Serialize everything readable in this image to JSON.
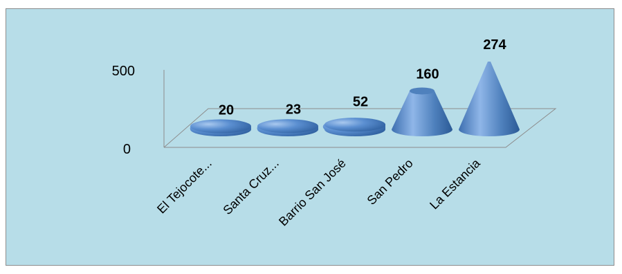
{
  "chart_data": {
    "type": "bar",
    "categories": [
      "El Tejocote...",
      "Santa Cruz...",
      "Barrio San José",
      "San Pedro",
      "La Estancia"
    ],
    "values": [
      20,
      23,
      52,
      160,
      274
    ],
    "data_labels": [
      "20",
      "23",
      "52",
      "160",
      "274"
    ],
    "y_ticks": [
      "0",
      "500"
    ],
    "ylim": [
      0,
      500
    ],
    "grid": false,
    "legend": "none",
    "style": "3d-cone",
    "colors": {
      "background": "#b7dde8",
      "cone": "#4f81bd",
      "floor": "#b7dde8"
    }
  }
}
